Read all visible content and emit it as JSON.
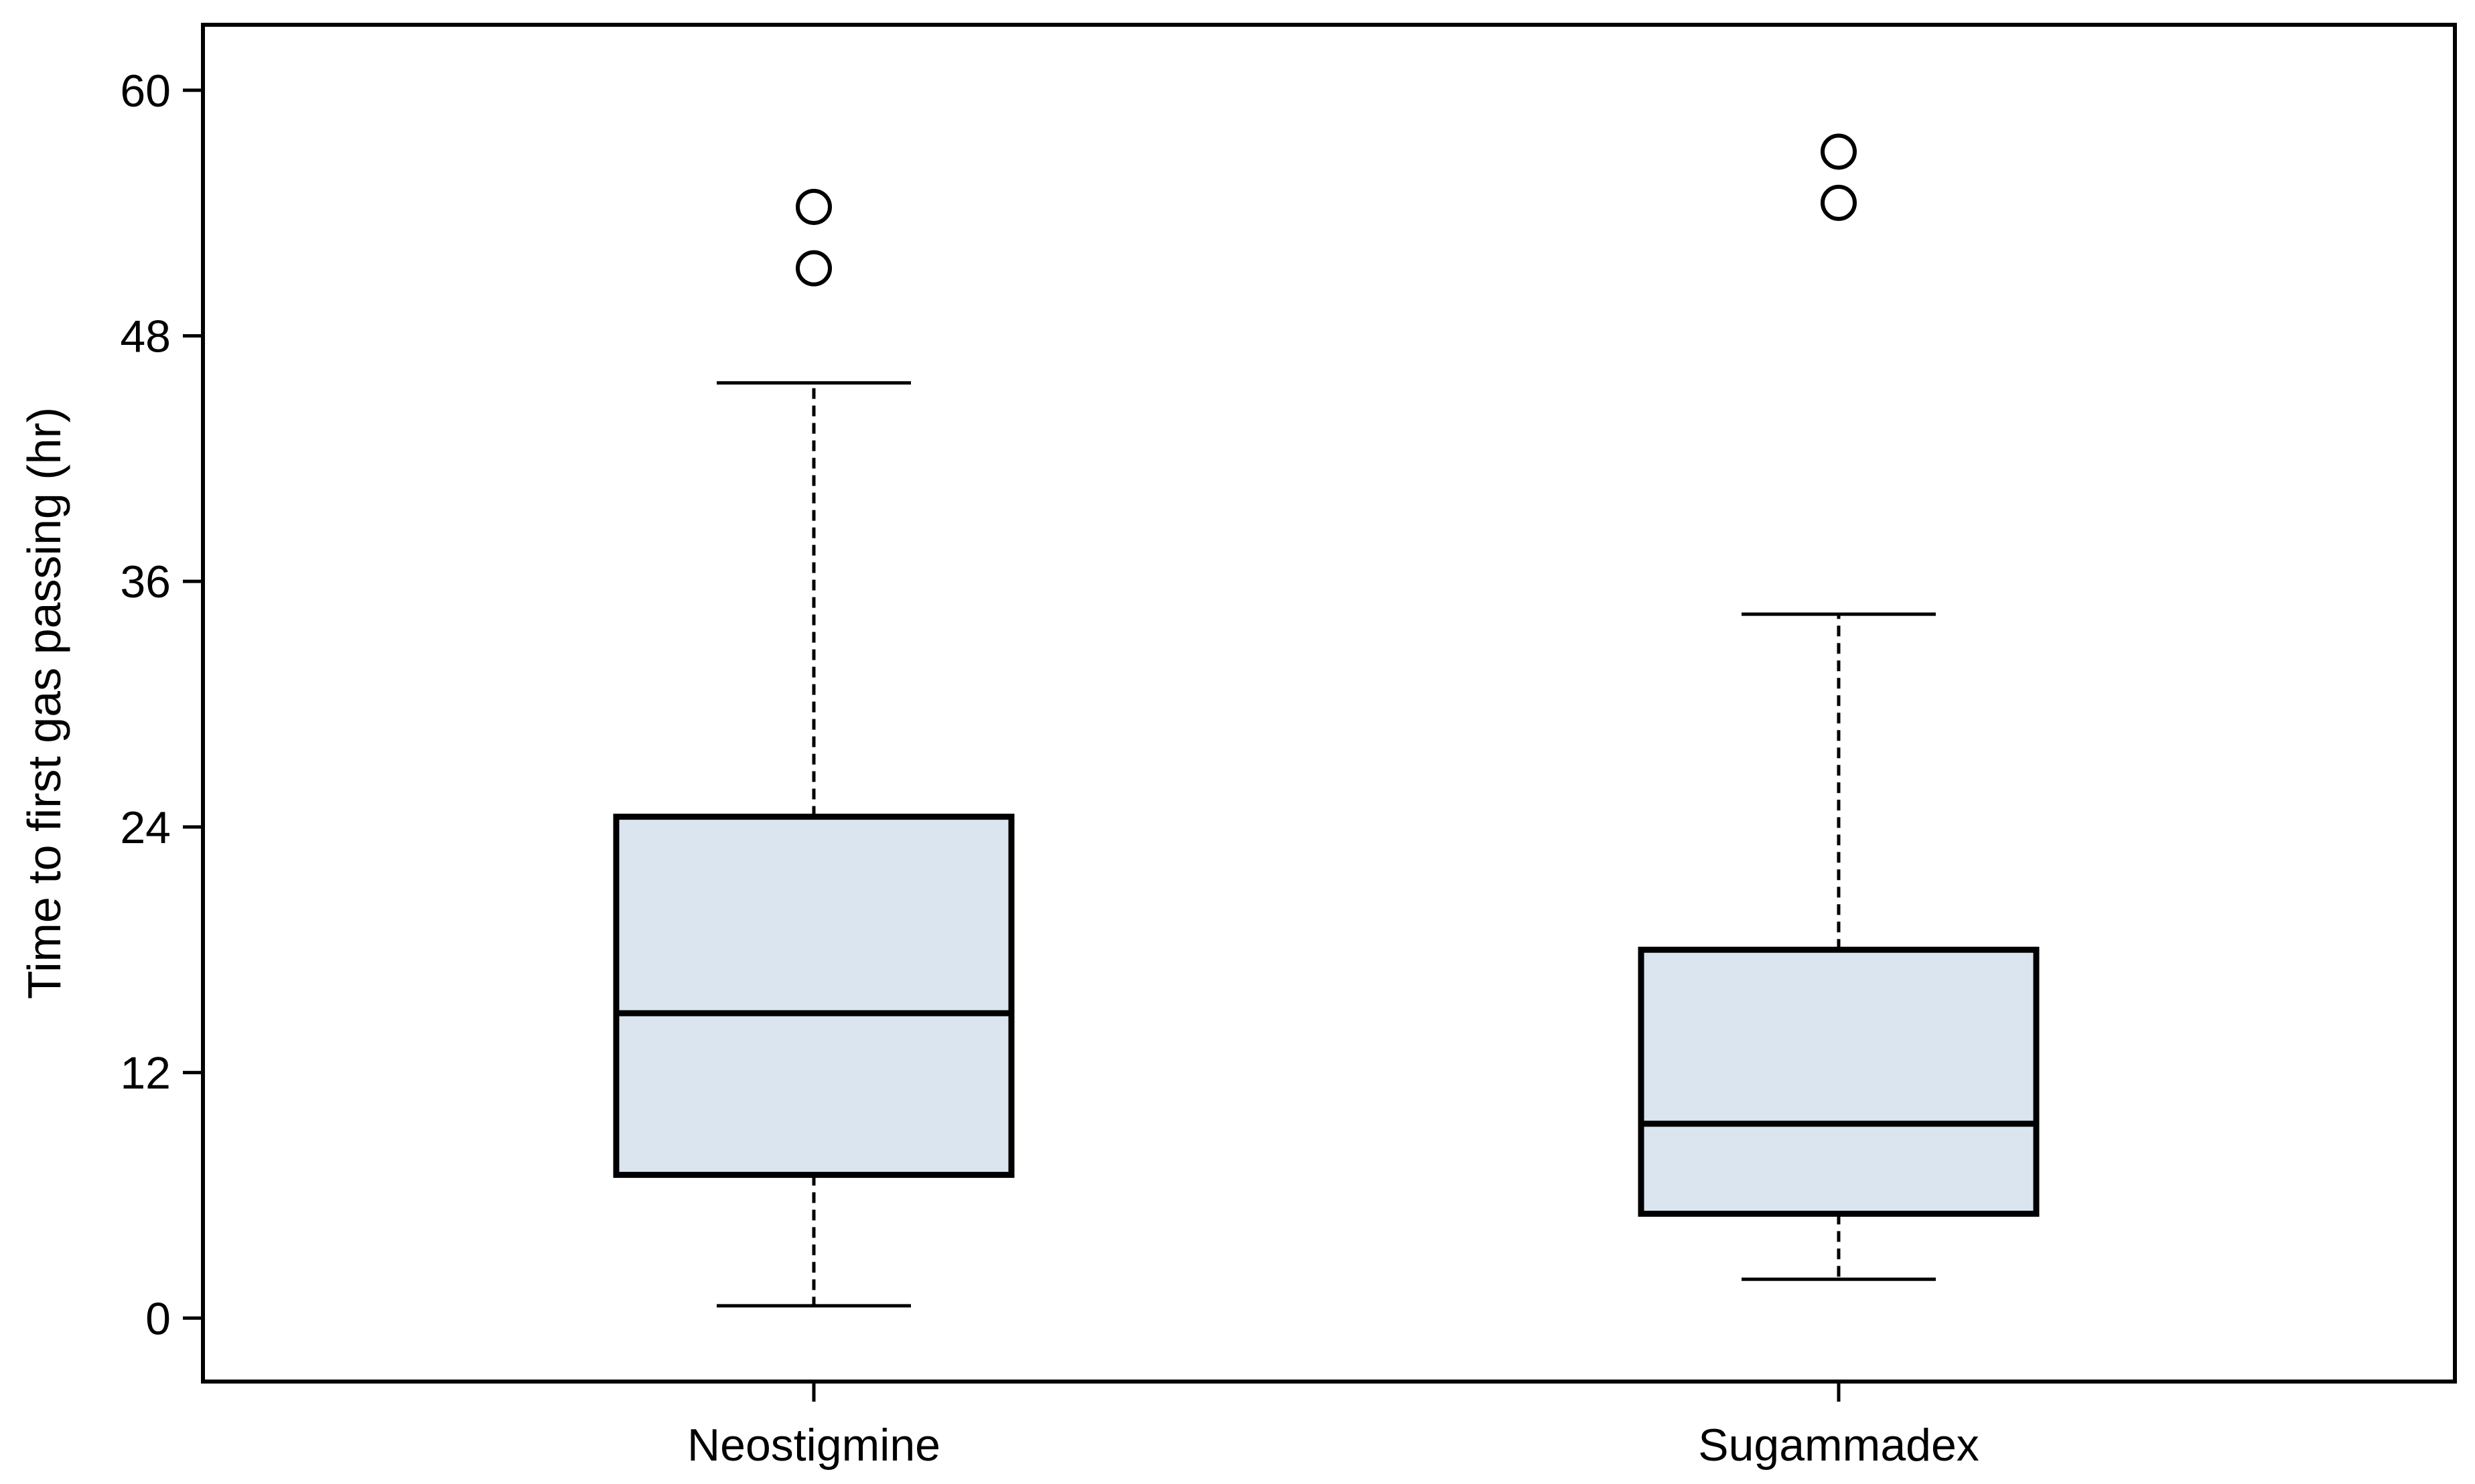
{
  "chart_data": {
    "type": "box",
    "title": "",
    "xlabel": "",
    "ylabel": "Time to first gas passing (hr)",
    "ylim": [
      -3.1,
      63.2
    ],
    "yticks": [
      0,
      12,
      24,
      36,
      48,
      60
    ],
    "grid": false,
    "legend": "none",
    "categories": [
      "Neostigmine",
      "Sugammadex"
    ],
    "boxes": [
      {
        "category": "Neostigmine",
        "whisker_low": 0.6,
        "q1": 7.0,
        "median": 14.9,
        "q3": 24.5,
        "whisker_high": 45.7,
        "outliers": [
          51.3,
          54.3
        ]
      },
      {
        "category": "Sugammadex",
        "whisker_low": 1.9,
        "q1": 5.1,
        "median": 9.5,
        "q3": 18.0,
        "whisker_high": 34.4,
        "outliers": [
          54.5,
          57.0
        ]
      }
    ],
    "colors": {
      "box_fill": "#dae5f0",
      "box_stroke": "#000000",
      "axis": "#000000"
    }
  }
}
